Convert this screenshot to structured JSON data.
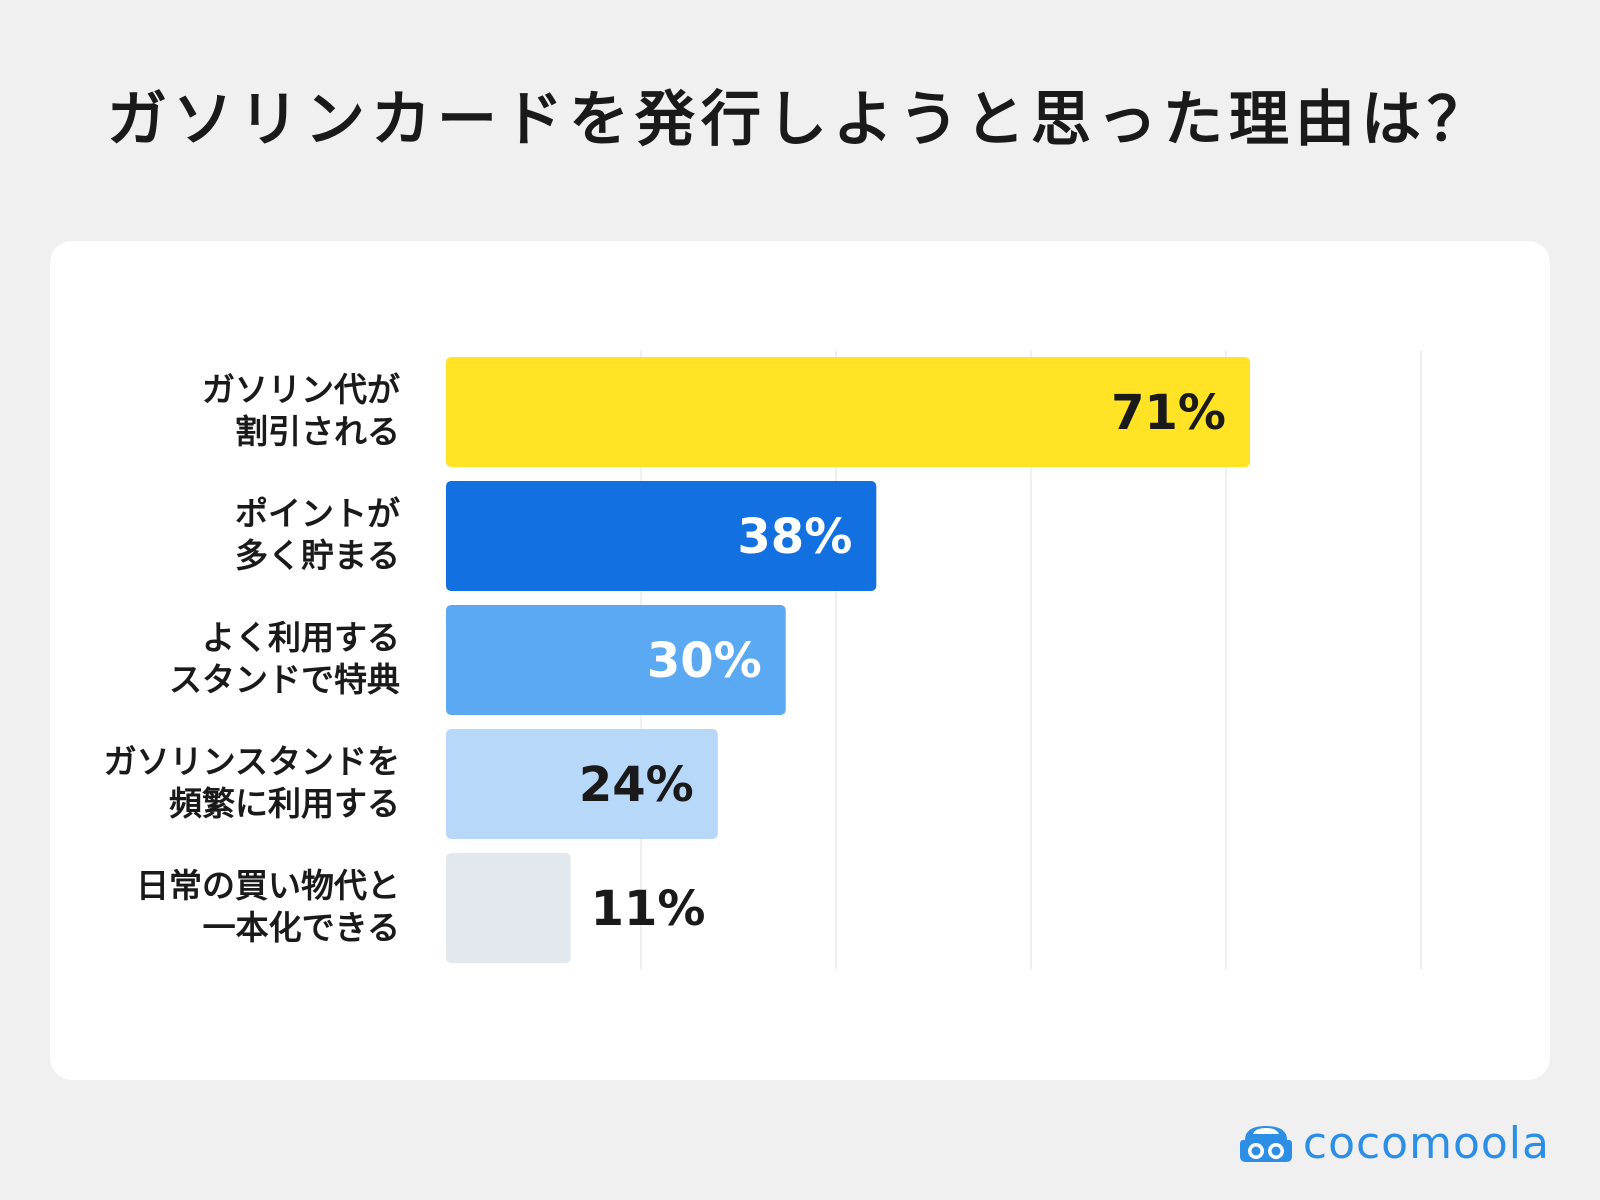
{
  "title": "ガソリンカードを発行しようと思った理由は？",
  "brand": {
    "name": "cocomoola",
    "icon": "car-face-icon",
    "color": "#2d8ee5"
  },
  "chart_data": {
    "type": "bar",
    "orientation": "horizontal",
    "title": "ガソリンカードを発行しようと思った理由は？",
    "unit": "%",
    "xlim": [
      0,
      100
    ],
    "grid": true,
    "categories": [
      [
        "ガソリン代が",
        "割引される"
      ],
      [
        "ポイントが",
        "多く貯まる"
      ],
      [
        "よく利用する",
        "スタンドで特典"
      ],
      [
        "ガソリンスタンドを",
        "頻繁に利用する"
      ],
      [
        "日常の買い物代と",
        "一本化できる"
      ]
    ],
    "values": [
      71,
      38,
      30,
      24,
      11
    ],
    "value_labels": [
      "71%",
      "38%",
      "30%",
      "24%",
      "11%"
    ],
    "bar_colors": [
      "#ffe324",
      "#1270e0",
      "#5ba9f2",
      "#b8d8fa",
      "#e3e7ee"
    ],
    "label_colors": [
      "#1a1a1a",
      "#ffffff",
      "#ffffff",
      "#1a1a1a",
      "#1a1a1a"
    ]
  }
}
